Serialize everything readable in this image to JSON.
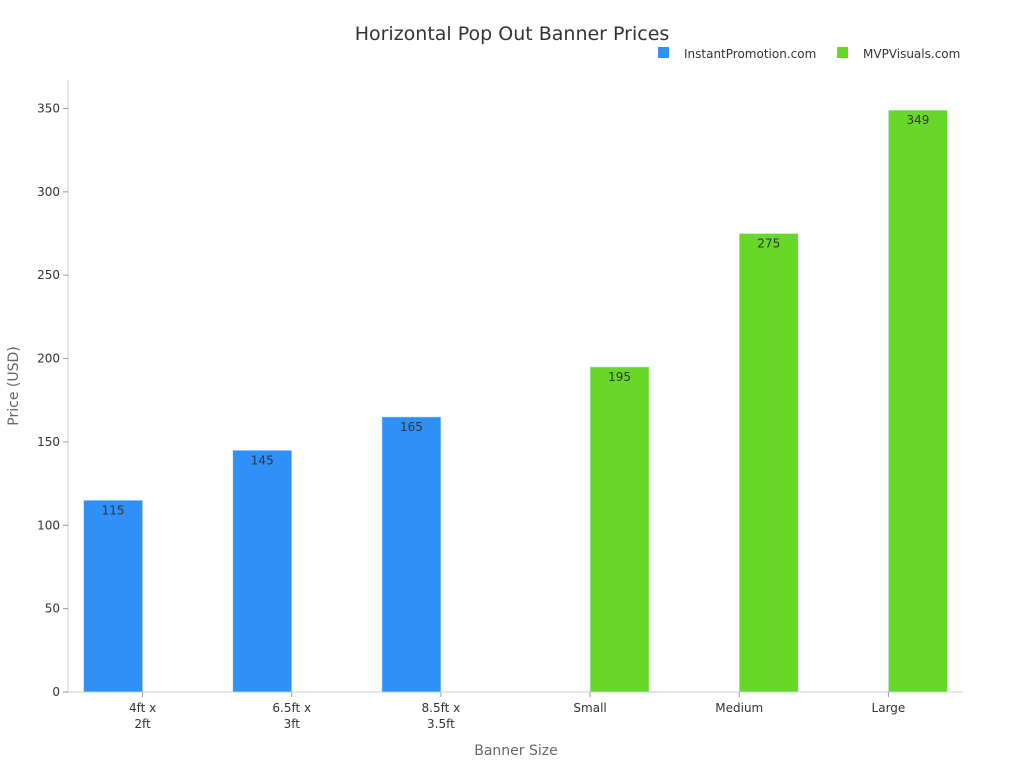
{
  "chart_data": {
    "type": "bar",
    "title": "Horizontal Pop Out Banner Prices",
    "xlabel": "Banner Size",
    "ylabel": "Price (USD)",
    "categories": [
      "4ft x 2ft",
      "6.5ft x 3ft",
      "8.5ft x 3.5ft",
      "Small",
      "Medium",
      "Large"
    ],
    "series": [
      {
        "name": "InstantPromotion.com",
        "color": "#2f91f7",
        "values": [
          115,
          145,
          165,
          null,
          null,
          null
        ]
      },
      {
        "name": "MVPVisuals.com",
        "color": "#68d828",
        "values": [
          null,
          null,
          null,
          195,
          275,
          349
        ]
      }
    ],
    "ylim": [
      0,
      350
    ],
    "yticks": [
      0,
      50,
      100,
      150,
      200,
      250,
      300,
      350
    ],
    "grid": false,
    "legend": "top-right",
    "data_labels": true
  }
}
